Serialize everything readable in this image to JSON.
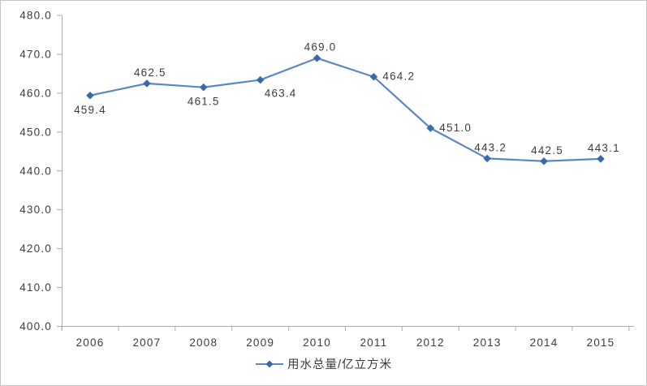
{
  "chart_data": {
    "type": "line",
    "title": "",
    "xlabel": "",
    "ylabel": "",
    "legend": {
      "label": "用水总量/亿立方米",
      "position": "bottom"
    },
    "categories": [
      "2006",
      "2007",
      "2008",
      "2009",
      "2010",
      "2011",
      "2012",
      "2013",
      "2014",
      "2015"
    ],
    "series": [
      {
        "name": "用水总量/亿立方米",
        "values": [
          459.4,
          462.5,
          461.5,
          463.4,
          469.0,
          464.2,
          451.0,
          443.2,
          442.5,
          443.1
        ],
        "point_labels": [
          "459.4",
          "462.5",
          "461.5",
          "463.4",
          "469.0",
          "464.2",
          "451.0",
          "443.2",
          "442.5",
          "443.1"
        ],
        "label_positions": [
          "below",
          "above",
          "below",
          "below-right",
          "above",
          "right",
          "right",
          "above",
          "above",
          "above"
        ]
      }
    ],
    "ylim": [
      400,
      480
    ],
    "y_tick_values": [
      400,
      410,
      420,
      430,
      440,
      450,
      460,
      470,
      480
    ],
    "y_tick_labels": [
      "400.0",
      "410.0",
      "420.0",
      "430.0",
      "440.0",
      "450.0",
      "460.0",
      "470.0",
      "480.0"
    ],
    "grid": false,
    "legend_position": "bottom",
    "colors": {
      "line": "#5b87c5",
      "marker": "#3a6aa8",
      "axis": "#ababab",
      "text": "#3d3d3d"
    }
  }
}
